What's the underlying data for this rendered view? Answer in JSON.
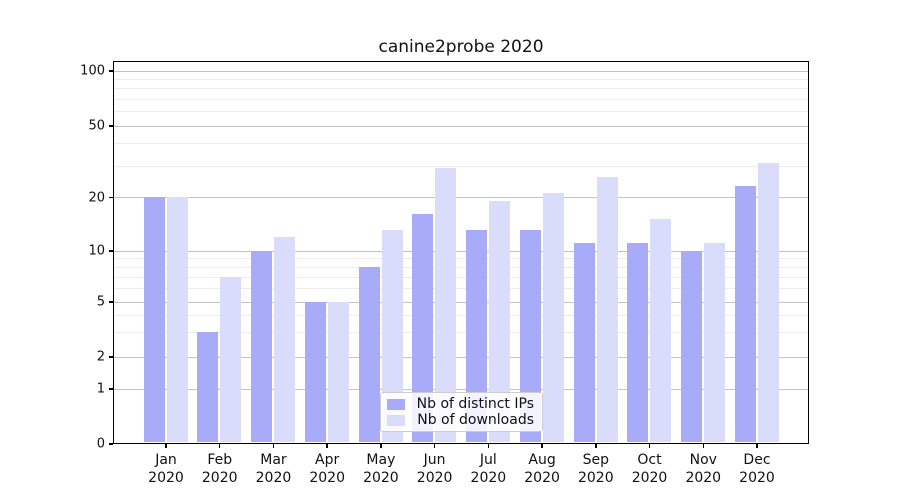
{
  "chart_data": {
    "type": "bar",
    "title": "canine2probe 2020",
    "categories": [
      "Jan 2020",
      "Feb 2020",
      "Mar 2020",
      "Apr 2020",
      "May 2020",
      "Jun 2020",
      "Jul 2020",
      "Aug 2020",
      "Sep 2020",
      "Oct 2020",
      "Nov 2020",
      "Dec 2020"
    ],
    "series": [
      {
        "name": "Nb of distinct IPs",
        "color": "#a8abf7",
        "values": [
          20,
          3,
          10,
          5,
          8,
          16,
          13,
          13,
          11,
          11,
          10,
          23
        ]
      },
      {
        "name": "Nb of downloads",
        "color": "#d9dcfb",
        "values": [
          20,
          7,
          12,
          5,
          13,
          29,
          19,
          21,
          26,
          15,
          11,
          31
        ]
      }
    ],
    "yscale": "log above 1, linear 0-1",
    "y_ticks": [
      0,
      1,
      2,
      5,
      10,
      20,
      50,
      100
    ],
    "y_minor_ticks": [
      3,
      4,
      6,
      7,
      8,
      9,
      30,
      40,
      60,
      70,
      80,
      90
    ],
    "ylim": [
      0,
      115
    ],
    "xlabel": "",
    "ylabel": "",
    "grid": "horizontal major and minor gridlines",
    "legend_position": "lower center",
    "colors": {
      "major_grid": "#c3c3c3",
      "minor_grid": "#ececec",
      "axis": "#000000",
      "text": "#111111"
    }
  }
}
